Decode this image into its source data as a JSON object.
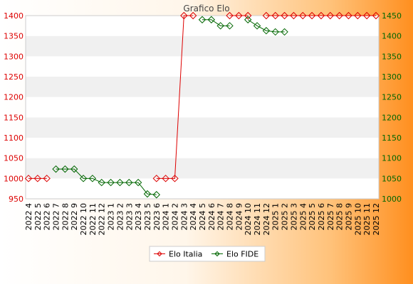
{
  "chart_data": {
    "type": "line",
    "title": "Grafico Elo",
    "xlabel": "",
    "ylabel": "",
    "categories": [
      "2022 4",
      "2022 5",
      "2022 6",
      "2022 7",
      "2022 8",
      "2022 9",
      "2022 10",
      "2022 11",
      "2022 12",
      "2023 1",
      "2023 2",
      "2023 3",
      "2023 4",
      "2023 5",
      "2023 6",
      "2024 1",
      "2024 2",
      "2024 3",
      "2024 4",
      "2024 5",
      "2024 6",
      "2024 7",
      "2024 8",
      "2024 9",
      "2024 10",
      "2024 11",
      "2024 12",
      "2025 1",
      "2025 2",
      "2025 3",
      "2025 4",
      "2025 5",
      "2025 6",
      "2025 7",
      "2025 8",
      "2025 9",
      "2025 10",
      "2025 11",
      "2025 12"
    ],
    "ylim_left": [
      950,
      1400
    ],
    "yticks_left": [
      950,
      1000,
      1050,
      1100,
      1150,
      1200,
      1250,
      1300,
      1350,
      1400
    ],
    "ylim_right": [
      1000,
      1450
    ],
    "yticks_right": [
      1000,
      1050,
      1100,
      1150,
      1200,
      1250,
      1300,
      1350,
      1400,
      1450
    ],
    "grid": "horizontal bands",
    "legend_position": "bottom-center",
    "series": [
      {
        "name": "Elo Italia",
        "axis": "left",
        "color": "#dd0000",
        "values": [
          1000,
          1000,
          1000,
          null,
          null,
          null,
          null,
          null,
          null,
          null,
          null,
          null,
          null,
          null,
          1000,
          1000,
          1000,
          1400,
          1400,
          null,
          null,
          null,
          1400,
          1400,
          1400,
          null,
          1400,
          1400,
          1400,
          1400,
          1400,
          1400,
          1400,
          1400,
          1400,
          1400,
          1400,
          1400,
          1400
        ]
      },
      {
        "name": "Elo FIDE",
        "axis": "right",
        "color": "#006600",
        "values": [
          null,
          null,
          null,
          1073,
          1073,
          1073,
          1050,
          1050,
          1040,
          1040,
          1040,
          1040,
          1040,
          1012,
          1010,
          null,
          null,
          null,
          null,
          1440,
          1440,
          1425,
          1425,
          null,
          1440,
          1425,
          1413,
          1410,
          1410,
          null,
          null,
          null,
          null,
          null,
          null,
          null,
          null,
          null,
          null
        ]
      }
    ]
  }
}
